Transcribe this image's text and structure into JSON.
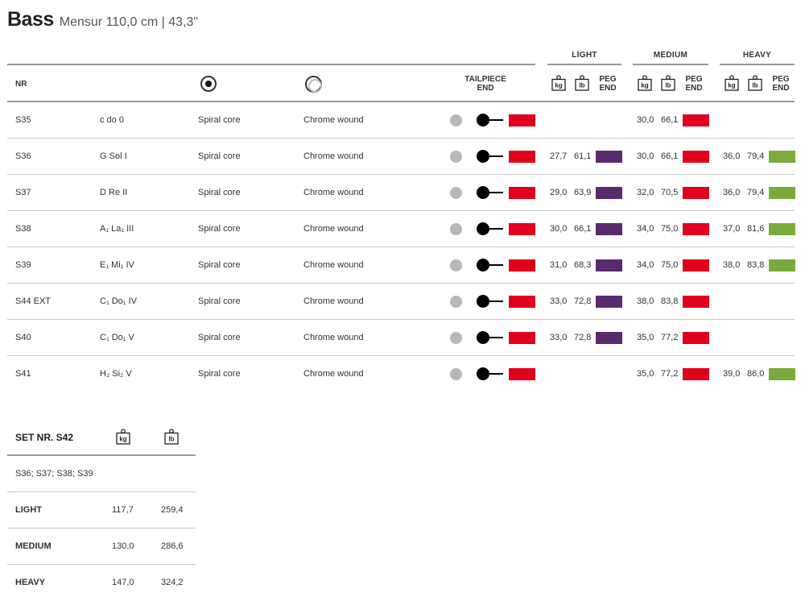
{
  "title": {
    "main": "Bass",
    "sub": "Mensur 110,0 cm | 43,3\""
  },
  "groups": {
    "light": "LIGHT",
    "medium": "MEDIUM",
    "heavy": "HEAVY"
  },
  "header": {
    "nr": "NR",
    "tailpiece_line1": "TAILPIECE",
    "tailpiece_line2": "END",
    "peg_line1": "PEG",
    "peg_line2": "END",
    "kg": "kg",
    "lb": "lb"
  },
  "colors": {
    "red": "#e0001b",
    "purple": "#5b2a6e",
    "green": "#7bab3c",
    "grey": "#b8b8b8"
  },
  "icons": {
    "solid_core": "spiral-core-icon",
    "wound": "chrome-wound-icon",
    "ball_end": "ball-end-icon",
    "weight": "weight-icon"
  },
  "rows": [
    {
      "nr": "S35",
      "note": "c  do  0",
      "core": "Spiral core",
      "winding": "Chrome wound",
      "light": null,
      "medium": {
        "kg": "30,0",
        "lb": "66,1"
      },
      "heavy": null
    },
    {
      "nr": "S36",
      "note": "G  Sol  I",
      "core": "Spiral core",
      "winding": "Chrome wound",
      "light": {
        "kg": "27,7",
        "lb": "61,1"
      },
      "medium": {
        "kg": "30,0",
        "lb": "66,1"
      },
      "heavy": {
        "kg": "36,0",
        "lb": "79,4"
      }
    },
    {
      "nr": "S37",
      "note": "D  Re  II",
      "core": "Spiral core",
      "winding": "Chrome wound",
      "light": {
        "kg": "29,0",
        "lb": "63,9"
      },
      "medium": {
        "kg": "32,0",
        "lb": "70,5"
      },
      "heavy": {
        "kg": "36,0",
        "lb": "79,4"
      }
    },
    {
      "nr": "S38",
      "note": "A₁  La₁  III",
      "core": "Spiral core",
      "winding": "Chrome wound",
      "light": {
        "kg": "30,0",
        "lb": "66,1"
      },
      "medium": {
        "kg": "34,0",
        "lb": "75,0"
      },
      "heavy": {
        "kg": "37,0",
        "lb": "81,6"
      }
    },
    {
      "nr": "S39",
      "note": "E₁  Mi₁  IV",
      "core": "Spiral core",
      "winding": "Chrome wound",
      "light": {
        "kg": "31,0",
        "lb": "68,3"
      },
      "medium": {
        "kg": "34,0",
        "lb": "75,0"
      },
      "heavy": {
        "kg": "38,0",
        "lb": "83,8"
      }
    },
    {
      "nr": "S44 EXT",
      "note": "C₁  Do₁  IV",
      "core": "Spiral core",
      "winding": "Chrome wound",
      "light": {
        "kg": "33,0",
        "lb": "72,8"
      },
      "medium": {
        "kg": "38,0",
        "lb": "83,8"
      },
      "heavy": null
    },
    {
      "nr": "S40",
      "note": "C₁  Do₁  V",
      "core": "Spiral core",
      "winding": "Chrome wound",
      "light": {
        "kg": "33,0",
        "lb": "72,8"
      },
      "medium": {
        "kg": "35,0",
        "lb": "77,2"
      },
      "heavy": null
    },
    {
      "nr": "S41",
      "note": "H₂  Si₂  V",
      "core": "Spiral core",
      "winding": "Chrome wound",
      "light": null,
      "medium": {
        "kg": "35,0",
        "lb": "77,2"
      },
      "heavy": {
        "kg": "39,0",
        "lb": "86,0"
      }
    }
  ],
  "set": {
    "title": "SET NR. S42",
    "members": "S36; S37; S38; S39",
    "rows": [
      {
        "label": "LIGHT",
        "kg": "117,7",
        "lb": "259,4"
      },
      {
        "label": "MEDIUM",
        "kg": "130,0",
        "lb": "286,6"
      },
      {
        "label": "HEAVY",
        "kg": "147,0",
        "lb": "324,2"
      }
    ]
  }
}
